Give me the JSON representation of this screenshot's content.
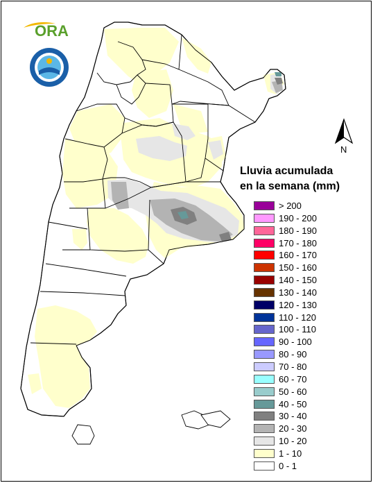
{
  "logo": {
    "text": "ORA"
  },
  "north_arrow": {
    "label": "N"
  },
  "legend": {
    "title_line1": "Lluvia acumulada",
    "title_line2": "en la semana (mm)",
    "items": [
      {
        "label": "> 200",
        "color": "#990099"
      },
      {
        "label": "190 - 200",
        "color": "#ff99ff"
      },
      {
        "label": "180 - 190",
        "color": "#ff6699"
      },
      {
        "label": "170 - 180",
        "color": "#ff0066"
      },
      {
        "label": "160 - 170",
        "color": "#ff0000"
      },
      {
        "label": "150 - 160",
        "color": "#cc3300"
      },
      {
        "label": "140 - 150",
        "color": "#990000"
      },
      {
        "label": "130 - 140",
        "color": "#663300"
      },
      {
        "label": "120 - 130",
        "color": "#000066"
      },
      {
        "label": "110 - 120",
        "color": "#003399"
      },
      {
        "label": "100 - 110",
        "color": "#6666cc"
      },
      {
        "label": "90 - 100",
        "color": "#6666ff"
      },
      {
        "label": "80 - 90",
        "color": "#9999ff"
      },
      {
        "label": "70 - 80",
        "color": "#ccccff"
      },
      {
        "label": "60 - 70",
        "color": "#99ffff"
      },
      {
        "label": "50 - 60",
        "color": "#99cccc"
      },
      {
        "label": "40 - 50",
        "color": "#669999"
      },
      {
        "label": "30 - 40",
        "color": "#808080"
      },
      {
        "label": "20 - 30",
        "color": "#b3b3b3"
      },
      {
        "label": "10 - 20",
        "color": "#e6e6e6"
      },
      {
        "label": "1 - 10",
        "color": "#ffffcc"
      },
      {
        "label": "0 - 1",
        "color": "#ffffff"
      }
    ]
  },
  "map_colors": {
    "none": "#ffffff",
    "light": "#ffffcc",
    "r10_20": "#e6e6e6",
    "r20_30": "#b3b3b3",
    "r30_40": "#808080",
    "r40_50": "#669999",
    "border": "#000000"
  }
}
